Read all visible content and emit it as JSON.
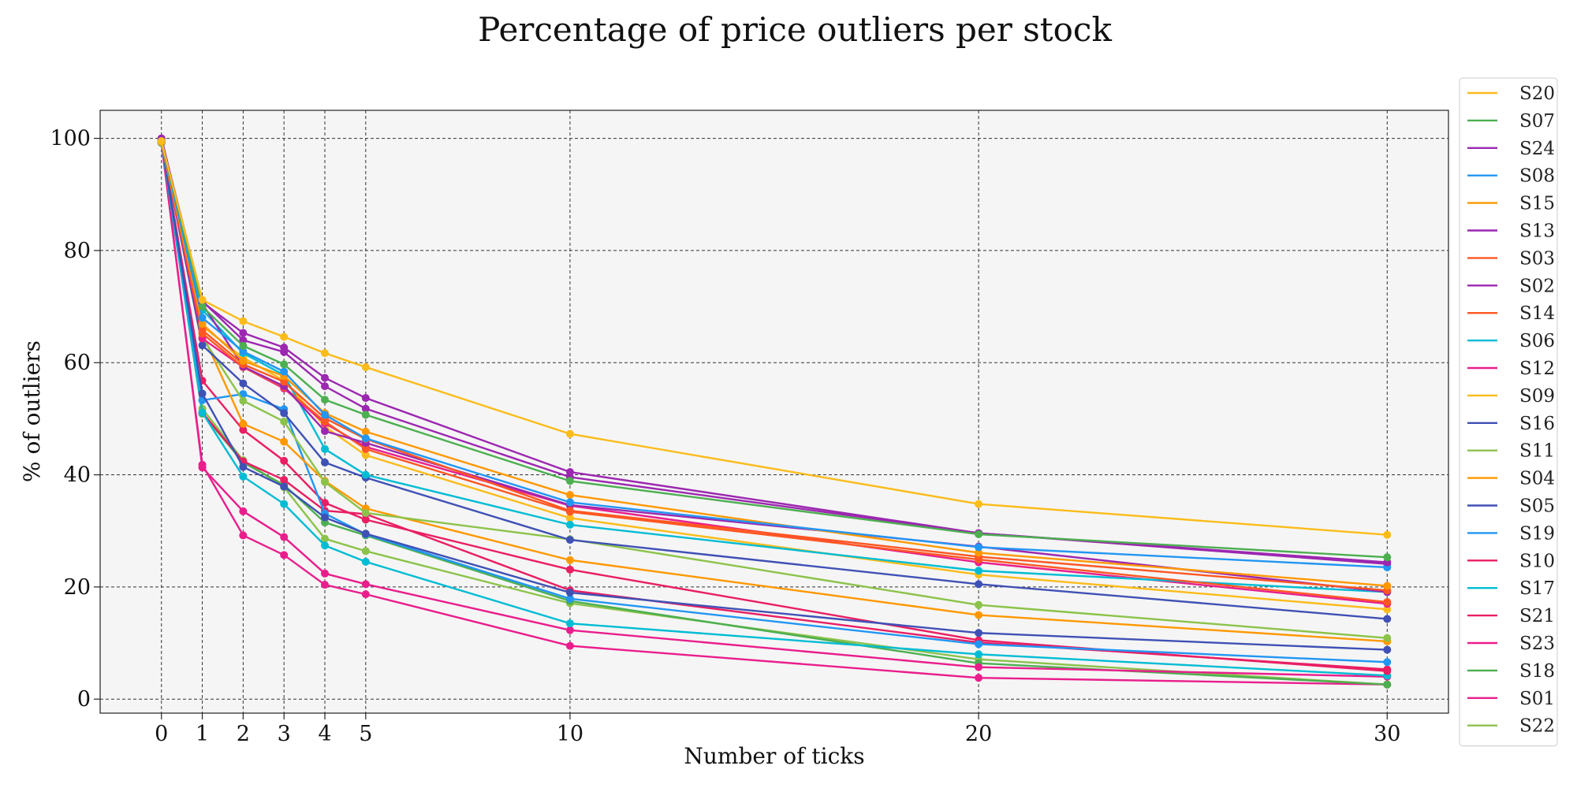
{
  "chart_data": {
    "type": "line",
    "title": "Percentage of price outliers per stock",
    "xlabel": "Number of ticks",
    "ylabel": "% of outliers",
    "xlim": [
      -1.5,
      31.5
    ],
    "ylim": [
      -2.5,
      105
    ],
    "x": [
      0,
      1,
      2,
      3,
      4,
      5,
      10,
      20,
      30
    ],
    "x_ticks": [
      0,
      1,
      2,
      3,
      4,
      5,
      10,
      20,
      30
    ],
    "y_ticks": [
      0,
      20,
      40,
      60,
      80,
      100
    ],
    "grid": true,
    "legend_position": "right",
    "plot_background": "#f5f5f5",
    "series": [
      {
        "name": "S20",
        "color": "#fbbc1a",
        "values": [
          99.5,
          71.2,
          67.4,
          64.6,
          61.7,
          59.2,
          47.3,
          34.8,
          29.3
        ]
      },
      {
        "name": "S07",
        "color": "#4caf50",
        "values": [
          99.5,
          70.0,
          63.0,
          59.7,
          53.4,
          50.7,
          38.9,
          29.4,
          25.3
        ]
      },
      {
        "name": "S24",
        "color": "#9c27b0",
        "values": [
          99.8,
          70.8,
          65.3,
          62.7,
          57.3,
          53.7,
          40.5,
          29.6,
          24.4
        ]
      },
      {
        "name": "S08",
        "color": "#2196f3",
        "values": [
          99.5,
          68.0,
          62.0,
          58.4,
          50.7,
          46.5,
          35.1,
          27.1,
          23.5
        ]
      },
      {
        "name": "S15",
        "color": "#ff9800",
        "values": [
          99.3,
          66.9,
          60.3,
          57.6,
          51.0,
          47.7,
          36.4,
          26.1,
          20.2
        ]
      },
      {
        "name": "S13",
        "color": "#9c27b0",
        "values": [
          99.9,
          71.0,
          64.0,
          61.9,
          55.8,
          51.8,
          39.6,
          29.6,
          24.1
        ]
      },
      {
        "name": "S03",
        "color": "#ff5722",
        "values": [
          99.4,
          65.8,
          59.7,
          56.6,
          50.1,
          46.4,
          33.6,
          25.4,
          19.4
        ]
      },
      {
        "name": "S02",
        "color": "#9c27b0",
        "values": [
          100.0,
          70.5,
          59.3,
          55.8,
          47.8,
          45.7,
          34.6,
          27.2,
          19.1
        ]
      },
      {
        "name": "S14",
        "color": "#ff5722",
        "values": [
          99.4,
          65.2,
          59.2,
          55.6,
          49.5,
          44.6,
          33.4,
          24.9,
          17.3
        ]
      },
      {
        "name": "S06",
        "color": "#00bcd4",
        "values": [
          99.2,
          69.4,
          61.7,
          57.8,
          44.6,
          40.0,
          31.1,
          22.9,
          19.1
        ]
      },
      {
        "name": "S12",
        "color": "#e91e8c",
        "values": [
          99.3,
          64.3,
          59.2,
          55.4,
          49.2,
          45.0,
          34.5,
          24.4,
          17.0
        ]
      },
      {
        "name": "S09",
        "color": "#fbbc1a",
        "values": [
          99.6,
          66.5,
          60.9,
          56.8,
          48.6,
          43.5,
          32.3,
          22.2,
          16.0
        ]
      },
      {
        "name": "S16",
        "color": "#3f51b5",
        "values": [
          99.6,
          63.1,
          56.3,
          51.0,
          42.2,
          39.5,
          28.4,
          20.5,
          14.3
        ]
      },
      {
        "name": "S11",
        "color": "#8bc34a",
        "values": [
          99.2,
          64.5,
          53.2,
          49.5,
          38.7,
          33.2,
          28.5,
          16.8,
          10.9
        ]
      },
      {
        "name": "S04",
        "color": "#ff9800",
        "values": [
          99.2,
          65.2,
          49.1,
          45.9,
          38.9,
          34.0,
          24.8,
          15.0,
          10.3
        ]
      },
      {
        "name": "S05",
        "color": "#3f51b5",
        "values": [
          99.4,
          54.5,
          41.4,
          37.9,
          32.4,
          29.5,
          19.0,
          11.8,
          8.8
        ]
      },
      {
        "name": "S19",
        "color": "#2196f3",
        "values": [
          99.4,
          53.3,
          54.4,
          51.7,
          33.1,
          29.4,
          17.9,
          9.8,
          6.6
        ]
      },
      {
        "name": "S10",
        "color": "#e91e63",
        "values": [
          99.3,
          56.8,
          48.0,
          42.5,
          35.0,
          32.0,
          23.1,
          10.5,
          5.0
        ]
      },
      {
        "name": "S17",
        "color": "#00bcd4",
        "values": [
          99.3,
          51.1,
          39.7,
          34.8,
          27.4,
          24.5,
          13.5,
          8.0,
          4.2
        ]
      },
      {
        "name": "S21",
        "color": "#e91e63",
        "values": [
          99.2,
          51.1,
          42.4,
          39.1,
          33.6,
          33.0,
          19.4,
          10.1,
          5.3
        ]
      },
      {
        "name": "S23",
        "color": "#e91e8c",
        "values": [
          99.4,
          41.3,
          33.5,
          28.9,
          22.4,
          20.5,
          12.3,
          5.7,
          4.0
        ]
      },
      {
        "name": "S18",
        "color": "#4caf50",
        "values": [
          99.2,
          50.9,
          42.2,
          38.2,
          31.5,
          29.2,
          17.5,
          6.4,
          2.6
        ]
      },
      {
        "name": "S01",
        "color": "#e91e8c",
        "values": [
          99.2,
          41.8,
          29.2,
          25.7,
          20.4,
          18.7,
          9.5,
          3.8,
          2.6
        ]
      },
      {
        "name": "S22",
        "color": "#8bc34a",
        "values": [
          99.2,
          51.8,
          42.6,
          37.8,
          28.6,
          26.4,
          17.1,
          7.1,
          2.6
        ]
      }
    ]
  }
}
